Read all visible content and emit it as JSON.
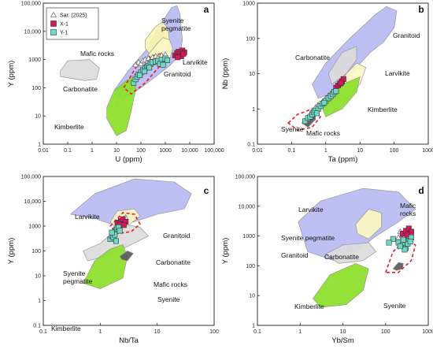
{
  "figure": {
    "legend": [
      {
        "label": "Sar. (2025)",
        "marker": "triangle",
        "color": "#ffffff"
      },
      {
        "label": "X-1",
        "marker": "square",
        "color": "#d6185a"
      },
      {
        "label": "Y-1",
        "marker": "square",
        "color": "#6fd9c6"
      }
    ]
  },
  "colors": {
    "granitoid": "#b9baf2",
    "carbonatite": "#dcdcdc",
    "kimberlite": "#8be028",
    "larvikite": "#fbf7c4",
    "syenite": "#5a5a5a",
    "syenite_pegmatite": "#fbf4b0",
    "mafic_outline": "#e21f26",
    "sar": "#ffffff",
    "x1": "#d6185a",
    "y1": "#6fd9c6"
  },
  "chart_data": [
    {
      "type": "scatter",
      "panel": "a",
      "xlabel": "U (ppm)",
      "ylabel": "Y (ppm)",
      "xscale": "log",
      "yscale": "log",
      "xlim": [
        0.01,
        100000
      ],
      "ylim": [
        1,
        100000
      ],
      "xticks": [
        "0.01",
        "0.1",
        "1",
        "10",
        "100",
        "1000",
        "10,000",
        "100,000"
      ],
      "yticks": [
        "1",
        "10",
        "100",
        "1000",
        "10,000",
        "100,000"
      ],
      "field_labels": [
        "Syenite pegmatite",
        "Larvikite",
        "Mafic rocks",
        "Granitoid",
        "Carbonatite",
        "Kimberlite"
      ],
      "series": [
        {
          "name": "Sar. (2025)",
          "points": [
            [
              60,
              650
            ],
            [
              80,
              800
            ],
            [
              100,
              700
            ],
            [
              120,
              900
            ],
            [
              150,
              1000
            ],
            [
              200,
              1100
            ],
            [
              250,
              950
            ],
            [
              300,
              1200
            ],
            [
              400,
              1300
            ],
            [
              500,
              1150
            ],
            [
              700,
              1400
            ],
            [
              1000,
              1500
            ]
          ]
        },
        {
          "name": "X-1",
          "points": [
            [
              2500,
              1400
            ],
            [
              3000,
              1700
            ],
            [
              3500,
              1900
            ],
            [
              4000,
              1600
            ],
            [
              5000,
              2100
            ],
            [
              6000,
              1800
            ],
            [
              4500,
              1300
            ],
            [
              3200,
              1200
            ],
            [
              5500,
              1600
            ]
          ]
        },
        {
          "name": "Y-1",
          "points": [
            [
              50,
              150
            ],
            [
              60,
              200
            ],
            [
              70,
              250
            ],
            [
              80,
              300
            ],
            [
              100,
              350
            ],
            [
              120,
              420
            ],
            [
              150,
              500
            ],
            [
              180,
              550
            ],
            [
              200,
              600
            ],
            [
              250,
              700
            ],
            [
              300,
              800
            ],
            [
              400,
              850
            ],
            [
              500,
              900
            ],
            [
              700,
              1000
            ],
            [
              1000,
              1100
            ],
            [
              1200,
              950
            ],
            [
              90,
              280
            ],
            [
              140,
              380
            ],
            [
              220,
              520
            ],
            [
              600,
              700
            ],
            [
              800,
              650
            ]
          ]
        }
      ]
    },
    {
      "type": "scatter",
      "panel": "b",
      "xlabel": "Ta (ppm)",
      "ylabel": "Nb (ppm)",
      "xscale": "log",
      "yscale": "log",
      "xlim": [
        0.01,
        1000
      ],
      "ylim": [
        0.1,
        1000
      ],
      "xticks": [
        "0.01",
        "0.1",
        "1",
        "10",
        "100",
        "1000"
      ],
      "yticks": [
        "0.1",
        "1",
        "10",
        "100",
        "1000"
      ],
      "field_labels": [
        "Carbonatite",
        "Granitoid",
        "Larvikite",
        "Syenite",
        "Kimberlite",
        "Mafic rocks"
      ],
      "series": [
        {
          "name": "Sar. (2025)",
          "points": [
            [
              0.4,
              0.9
            ],
            [
              0.5,
              1.1
            ],
            [
              0.6,
              1.3
            ],
            [
              0.8,
              1.6
            ],
            [
              1.0,
              2.0
            ],
            [
              1.2,
              2.4
            ],
            [
              1.5,
              3.0
            ],
            [
              2.0,
              3.5
            ]
          ]
        },
        {
          "name": "X-1",
          "points": [
            [
              2.0,
              4.0
            ],
            [
              2.3,
              4.6
            ],
            [
              2.6,
              5.2
            ],
            [
              3.0,
              6.0
            ],
            [
              3.3,
              7.0
            ],
            [
              2.8,
              5.5
            ]
          ]
        },
        {
          "name": "Y-1",
          "points": [
            [
              0.25,
              0.45
            ],
            [
              0.3,
              0.55
            ],
            [
              0.35,
              0.6
            ],
            [
              0.4,
              0.7
            ],
            [
              0.45,
              0.8
            ],
            [
              0.5,
              0.9
            ],
            [
              0.6,
              1.0
            ],
            [
              0.7,
              1.2
            ],
            [
              0.8,
              1.4
            ],
            [
              1.0,
              1.7
            ],
            [
              1.2,
              2.0
            ],
            [
              1.4,
              2.3
            ],
            [
              1.6,
              2.6
            ],
            [
              1.8,
              3.0
            ],
            [
              2.0,
              3.2
            ],
            [
              0.55,
              0.75
            ],
            [
              0.9,
              1.5
            ]
          ]
        }
      ]
    },
    {
      "type": "scatter",
      "panel": "c",
      "xlabel": "Nb/Ta",
      "ylabel": "Y (ppm)",
      "xscale": "log",
      "yscale": "log",
      "xlim": [
        0.1,
        100
      ],
      "ylim": [
        0.1,
        100000
      ],
      "xticks": [
        "0.1",
        "1",
        "10",
        "100"
      ],
      "yticks": [
        "0.1",
        "1",
        "10",
        "100",
        "1000",
        "10,000",
        "100,000"
      ],
      "field_labels": [
        "Larvikite",
        "Granitoid",
        "Syenite pegmatite",
        "Carbonatite",
        "Mafic rocks",
        "Syenite",
        "Kimberlite"
      ],
      "series": [
        {
          "name": "Sar. (2025)",
          "points": [
            [
              2.0,
              1200
            ],
            [
              2.2,
              1500
            ],
            [
              2.4,
              1800
            ],
            [
              2.6,
              2000
            ],
            [
              2.1,
              1000
            ],
            [
              2.8,
              2200
            ],
            [
              2.3,
              1300
            ]
          ]
        },
        {
          "name": "X-1",
          "points": [
            [
              2.0,
              1400
            ],
            [
              2.3,
              1600
            ],
            [
              2.5,
              1900
            ],
            [
              2.8,
              1500
            ],
            [
              2.2,
              1200
            ],
            [
              2.6,
              1100
            ]
          ]
        },
        {
          "name": "Y-1",
          "points": [
            [
              1.5,
              300
            ],
            [
              1.6,
              400
            ],
            [
              1.7,
              500
            ],
            [
              1.8,
              600
            ],
            [
              1.9,
              700
            ],
            [
              2.0,
              800
            ],
            [
              1.7,
              350
            ],
            [
              1.8,
              450
            ],
            [
              2.1,
              900
            ],
            [
              1.6,
              550
            ],
            [
              2.2,
              650
            ],
            [
              1.9,
              250
            ]
          ]
        }
      ]
    },
    {
      "type": "scatter",
      "panel": "d",
      "xlabel": "Yb/Sm",
      "ylabel": "Y (ppm)",
      "xscale": "log",
      "yscale": "log",
      "xlim": [
        0.1,
        1000
      ],
      "ylim": [
        1,
        100000
      ],
      "xticks": [
        "0.1",
        "1",
        "10",
        "100",
        "1000"
      ],
      "yticks": [
        "1",
        "10",
        "100",
        "1000",
        "10,000",
        "100,000"
      ],
      "field_labels": [
        "Larvikite",
        "Mafic rocks",
        "Syenite pegmatite",
        "Granitoid",
        "Carbonatite",
        "Kimberlite",
        "Syenite"
      ],
      "series": [
        {
          "name": "Sar. (2025)",
          "points": [
            [
              200,
              900
            ],
            [
              250,
              1100
            ],
            [
              300,
              1300
            ],
            [
              350,
              1500
            ],
            [
              400,
              1200
            ],
            [
              280,
              1000
            ],
            [
              320,
              1700
            ],
            [
              220,
              1400
            ]
          ]
        },
        {
          "name": "X-1",
          "points": [
            [
              250,
              1200
            ],
            [
              300,
              1500
            ],
            [
              350,
              1800
            ],
            [
              400,
              1400
            ],
            [
              320,
              1100
            ]
          ]
        },
        {
          "name": "Y-1",
          "points": [
            [
              150,
              800
            ],
            [
              200,
              600
            ],
            [
              250,
              500
            ],
            [
              300,
              400
            ],
            [
              350,
              700
            ],
            [
              400,
              900
            ],
            [
              280,
              350
            ],
            [
              220,
              450
            ],
            [
              330,
              550
            ],
            [
              380,
              650
            ],
            [
              260,
              750
            ],
            [
              120,
              600
            ]
          ]
        }
      ]
    }
  ]
}
